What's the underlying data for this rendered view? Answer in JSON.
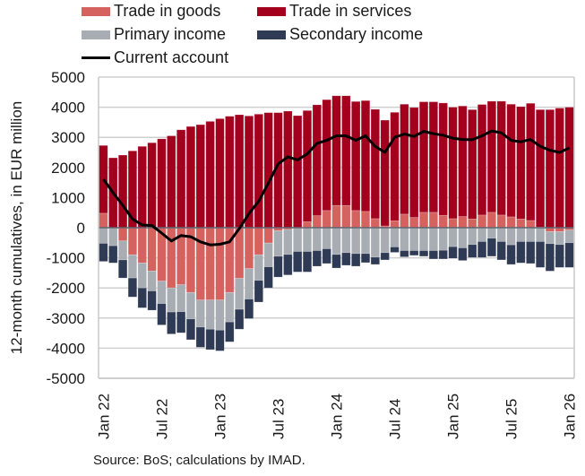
{
  "chart_data": {
    "type": "bar",
    "stacked": true,
    "title": "",
    "xlabel": "",
    "ylabel": "12-month cumulatives, in EUR million",
    "ylim": [
      -5000,
      5000
    ],
    "yticks": [
      5000,
      4000,
      3000,
      2000,
      1000,
      0,
      -1000,
      -2000,
      -3000,
      -4000,
      -5000
    ],
    "xtick_labels": [
      "Jan 22",
      "Jul 22",
      "Jan 23",
      "Jul 23",
      "Jan 24",
      "Jul 24",
      "Jan 25",
      "Jul 25",
      "Jan 26"
    ],
    "grid": "horizontal",
    "legend_placement": "top",
    "source": "Source: BoS; calculations by IMAD.",
    "x": [
      "Jan 22",
      "Feb 22",
      "Mar 22",
      "Apr 22",
      "May 22",
      "Jun 22",
      "Jul 22",
      "Aug 22",
      "Sep 22",
      "Oct 22",
      "Nov 22",
      "Dec 22",
      "Jan 23",
      "Feb 23",
      "Mar 23",
      "Apr 23",
      "May 23",
      "Jun 23",
      "Jul 23",
      "Aug 23",
      "Sep 23",
      "Oct 23",
      "Nov 23",
      "Dec 23",
      "Jan 24",
      "Feb 24",
      "Mar 24",
      "Apr 24",
      "May 24",
      "Jun 24",
      "Jul 24",
      "Aug 24",
      "Sep 24",
      "Oct 24",
      "Nov 24",
      "Dec 24",
      "Jan 25",
      "Feb 25",
      "Mar 25",
      "Apr 25",
      "May 25",
      "Jun 25",
      "Jul 25",
      "Aug 25",
      "Sep 25",
      "Oct 25",
      "Nov 25",
      "Dec 25",
      "Jan 26"
    ],
    "series": [
      {
        "name": "Trade in goods",
        "color": "#d6625f",
        "kind": "bar",
        "values": [
          480,
          0,
          -440,
          -900,
          -1170,
          -1440,
          -1770,
          -2000,
          -1890,
          -2150,
          -2400,
          -2400,
          -2400,
          -2150,
          -1680,
          -1360,
          -900,
          -510,
          -100,
          -60,
          0,
          200,
          400,
          570,
          740,
          740,
          570,
          540,
          300,
          60,
          230,
          450,
          340,
          510,
          510,
          410,
          300,
          370,
          290,
          420,
          510,
          420,
          360,
          290,
          240,
          20,
          -130,
          -130,
          -80
        ]
      },
      {
        "name": "Trade in services",
        "color": "#a3001e",
        "kind": "bar",
        "values": [
          2250,
          2320,
          2410,
          2550,
          2700,
          2820,
          2950,
          3050,
          3250,
          3360,
          3420,
          3530,
          3620,
          3700,
          3750,
          3710,
          3770,
          3820,
          3820,
          3870,
          3720,
          3690,
          3680,
          3680,
          3640,
          3640,
          3620,
          3680,
          3630,
          3510,
          3600,
          3650,
          3650,
          3670,
          3670,
          3730,
          3700,
          3670,
          3630,
          3670,
          3690,
          3780,
          3740,
          3730,
          3890,
          3900,
          3920,
          3970,
          4000
        ]
      },
      {
        "name": "Primary income",
        "color": "#a8adb3",
        "kind": "bar",
        "values": [
          -520,
          -600,
          -630,
          -770,
          -830,
          -660,
          -750,
          -800,
          -900,
          -880,
          -900,
          -970,
          -1000,
          -980,
          -1030,
          -1010,
          -850,
          -790,
          -850,
          -830,
          -790,
          -790,
          -760,
          -700,
          -890,
          -830,
          -860,
          -860,
          -980,
          -830,
          -640,
          -760,
          -760,
          -760,
          -760,
          -750,
          -630,
          -670,
          -560,
          -460,
          -350,
          -460,
          -570,
          -460,
          -460,
          -460,
          -400,
          -430,
          -420
        ]
      },
      {
        "name": "Secondary income",
        "color": "#2f3a55",
        "kind": "bar",
        "values": [
          -600,
          -570,
          -600,
          -630,
          -660,
          -640,
          -710,
          -730,
          -700,
          -690,
          -670,
          -680,
          -690,
          -660,
          -660,
          -650,
          -720,
          -700,
          -690,
          -680,
          -680,
          -680,
          -520,
          -490,
          -450,
          -420,
          -420,
          -300,
          -240,
          -240,
          -180,
          -210,
          -160,
          -190,
          -280,
          -290,
          -390,
          -420,
          -430,
          -530,
          -600,
          -610,
          -650,
          -710,
          -730,
          -860,
          -910,
          -760,
          -820
        ]
      },
      {
        "name": "Current account",
        "color": "#000000",
        "kind": "line",
        "values": [
          1610,
          1160,
          740,
          290,
          90,
          70,
          -180,
          -440,
          -260,
          -300,
          -470,
          -570,
          -550,
          -470,
          -30,
          470,
          880,
          1480,
          2120,
          2350,
          2250,
          2450,
          2800,
          2900,
          3050,
          3050,
          2900,
          3050,
          2700,
          2500,
          3000,
          3110,
          3030,
          3200,
          3120,
          3070,
          2970,
          2930,
          2920,
          3050,
          3210,
          3150,
          2900,
          2850,
          2930,
          2700,
          2570,
          2500,
          2650
        ]
      }
    ]
  },
  "legend": {
    "goods": "Trade in goods",
    "services": "Trade in services",
    "primary": "Primary income",
    "secondary": "Secondary income",
    "current": "Current account"
  }
}
